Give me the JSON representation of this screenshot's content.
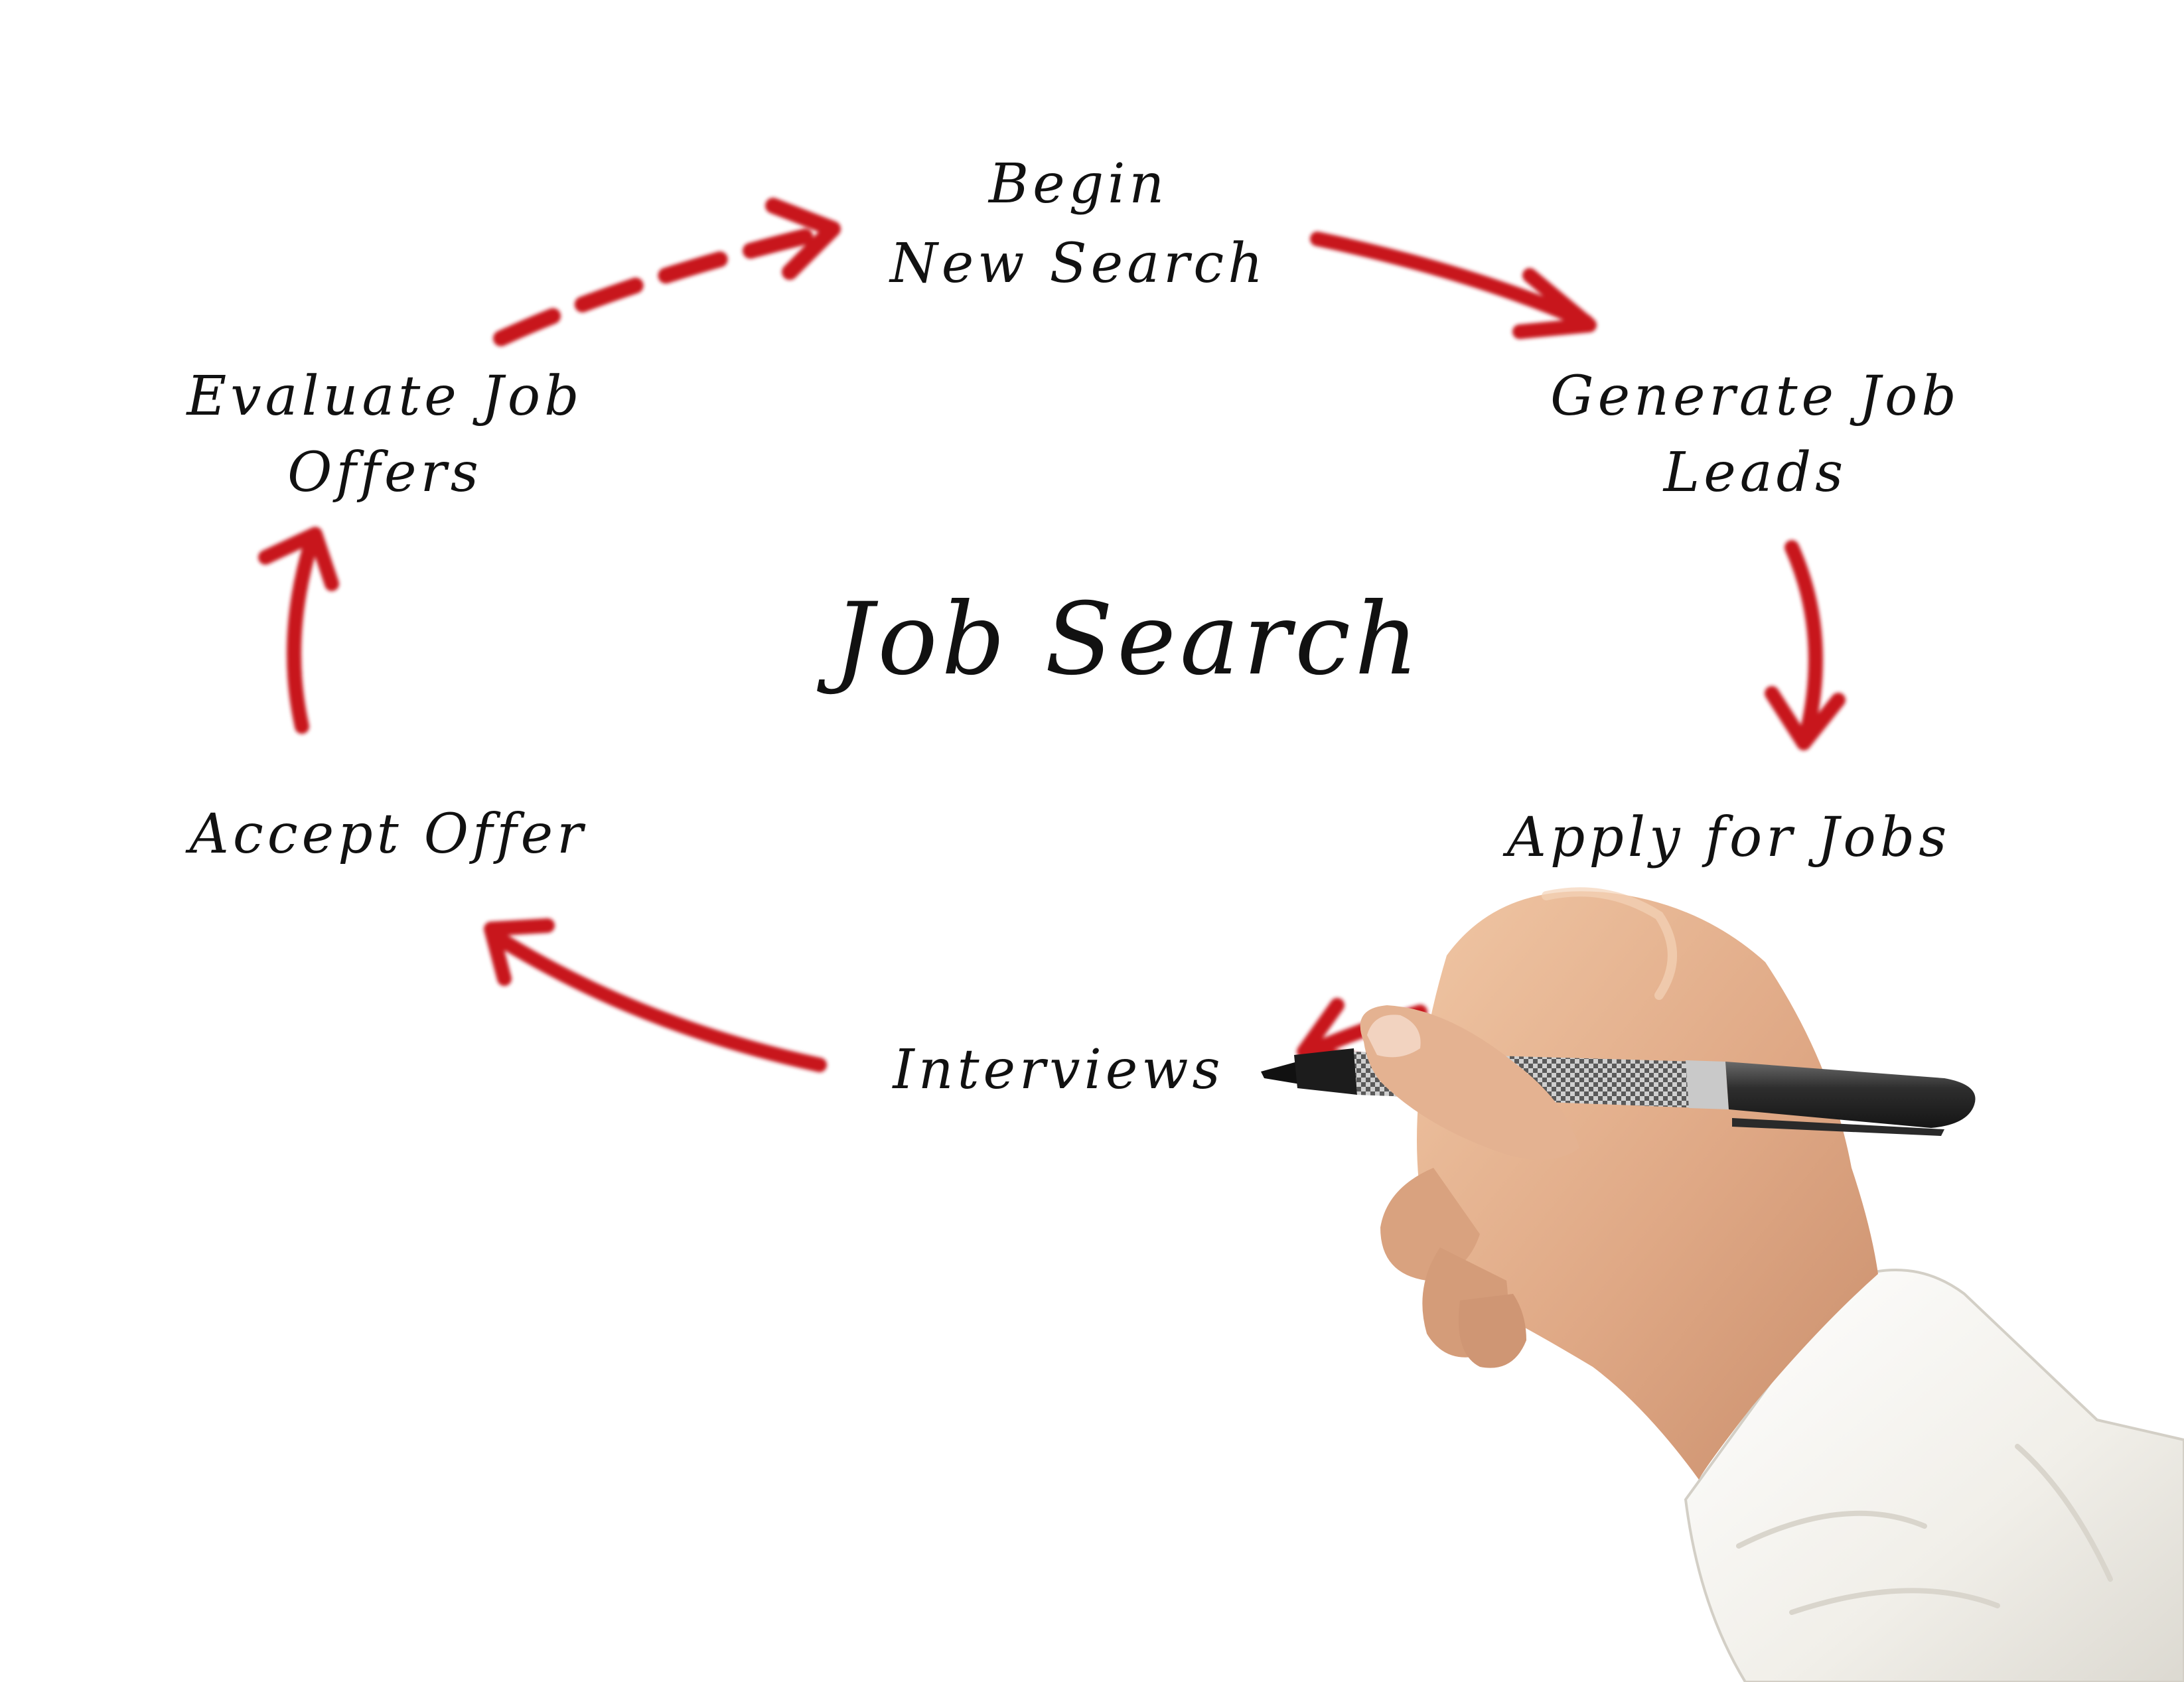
{
  "diagram": {
    "title": "Job Search",
    "steps": [
      {
        "id": "begin",
        "lines": [
          "Begin",
          "New Search"
        ]
      },
      {
        "id": "generate",
        "lines": [
          "Generate Job",
          "Leads"
        ]
      },
      {
        "id": "apply",
        "lines": [
          "Apply for Jobs"
        ]
      },
      {
        "id": "interviews",
        "lines": [
          "Interviews"
        ]
      },
      {
        "id": "accept",
        "lines": [
          "Accept Offer"
        ]
      },
      {
        "id": "evaluate",
        "lines": [
          "Evaluate Job",
          "Offers"
        ]
      }
    ]
  },
  "colors": {
    "background": "#ffffff",
    "ink": "#111111",
    "arrow": "#c8141b",
    "skin": "#e2b08e",
    "sleeve": "#f3f1ec",
    "pen_body": "#3a3a3a",
    "pen_grip": "#b9b9b9"
  },
  "icons": {
    "hand": "hand-holding-marker-icon",
    "marker": "marker-pen-icon"
  }
}
